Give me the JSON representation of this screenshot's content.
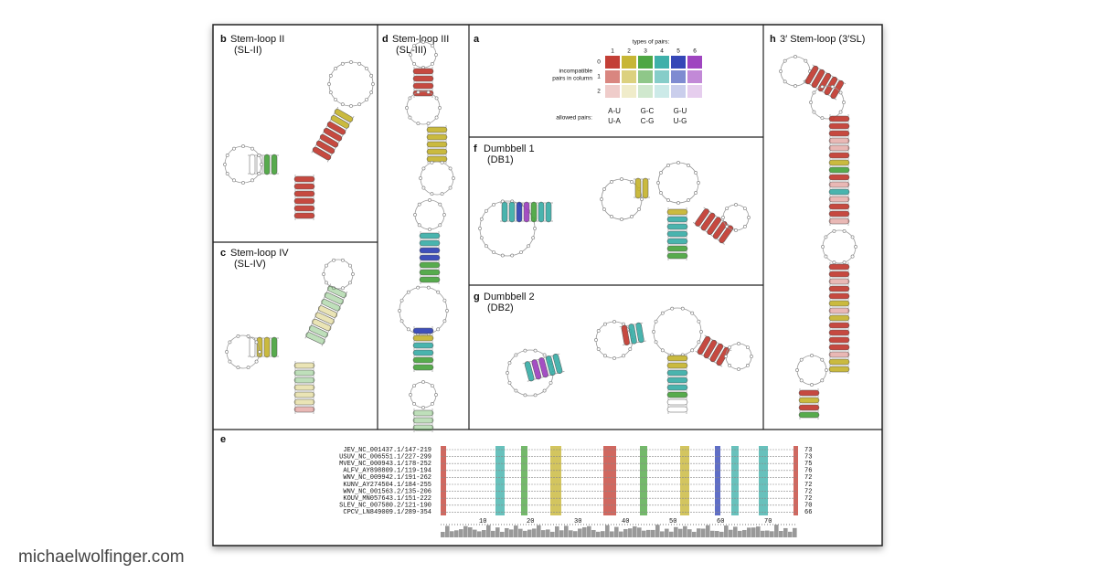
{
  "watermark": "michaelwolfinger.com",
  "panels": [
    {
      "letter": "b",
      "title": "Stem-loop II",
      "subtitle": "(SL-II)"
    },
    {
      "letter": "c",
      "title": "Stem-loop IV",
      "subtitle": "(SL-IV)"
    },
    {
      "letter": "d",
      "title": "Stem-loop III",
      "subtitle": "(SL-III)"
    },
    {
      "letter": "f",
      "title": "Dumbbell 1",
      "subtitle": "(DB1)"
    },
    {
      "letter": "g",
      "title": "Dumbbell 2",
      "subtitle": "(DB2)"
    },
    {
      "letter": "h",
      "title": "3′ Stem-loop (3′SL)"
    }
  ],
  "legend": {
    "letter": "a",
    "title": "types of pairs:",
    "columns": [
      "1",
      "2",
      "3",
      "4",
      "5",
      "6"
    ],
    "rows_label": [
      "incompatible",
      "pairs in column"
    ],
    "rows": [
      "0",
      "1",
      "2"
    ],
    "allowed_label": "allowed pairs:",
    "allowed": [
      [
        "A-U",
        "U-A"
      ],
      [
        "G-C",
        "C-G"
      ],
      [
        "G-U",
        "U-G"
      ]
    ]
  },
  "alignment": {
    "letter": "e",
    "sequences": [
      {
        "name": "JEV_NC_001437.1/147-219",
        "length": 73
      },
      {
        "name": "USUV_NC_006551.1/227-299",
        "length": 73
      },
      {
        "name": "MVEV_NC_000943.1/178-252",
        "length": 75
      },
      {
        "name": "ALFV_AY898809.1/119-194",
        "length": 76
      },
      {
        "name": "WNV_NC_009942.1/191-262",
        "length": 72
      },
      {
        "name": "KUNV_AY274504.1/184-255",
        "length": 72
      },
      {
        "name": "WNV_NC_001563.2/135-206",
        "length": 72
      },
      {
        "name": "KOUV_MN057643.1/151-222",
        "length": 72
      },
      {
        "name": "SLEV_NC_007580.2/121-190",
        "length": 70
      },
      {
        "name": "CPCV_LN849009.1/289-354",
        "length": 66
      }
    ],
    "ruler": [
      10,
      20,
      30,
      40,
      50,
      60,
      70
    ]
  }
}
